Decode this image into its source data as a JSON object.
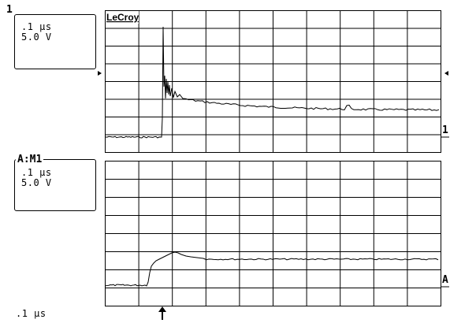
{
  "brand": "LeCroy",
  "channel1": {
    "tag": "1",
    "timebase": ".1 µs",
    "volts": "5.0 V",
    "marker_label": "1"
  },
  "math": {
    "tag": "A:M1",
    "timebase": ".1 µs",
    "volts": "5.0 V",
    "marker_label": "A"
  },
  "footer": {
    "timebase": ".1 µs"
  },
  "grid": {
    "columns": 10,
    "rows": 8
  },
  "colors": {
    "trace": "#000000",
    "grid": "#000000",
    "background": "#ffffff"
  }
}
